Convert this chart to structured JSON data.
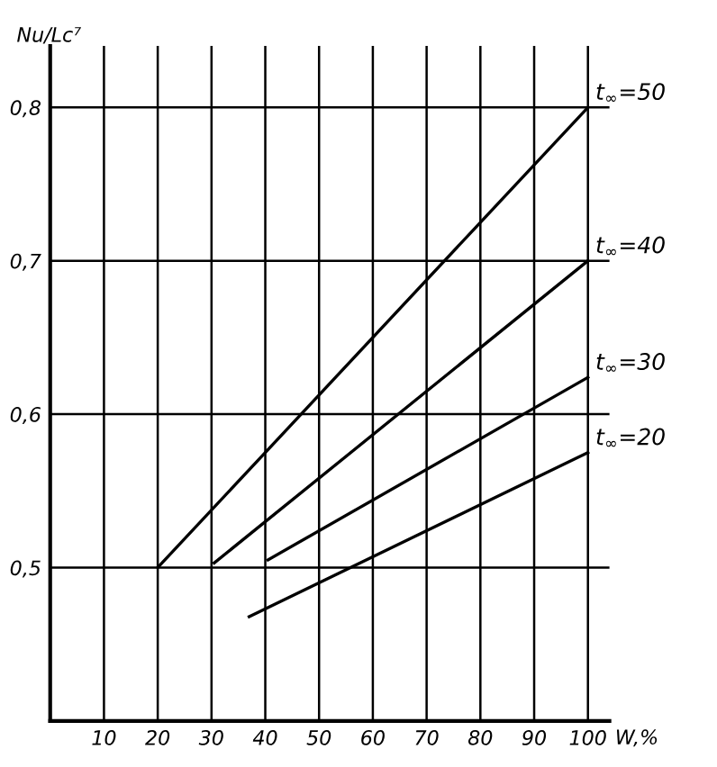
{
  "chart_data": {
    "type": "line",
    "ylabel": "Nu/Lc⁷",
    "xlabel": "W,%",
    "xlim": [
      0,
      104
    ],
    "ylim": [
      0.4,
      0.84
    ],
    "xticks": [
      10,
      20,
      30,
      40,
      50,
      60,
      70,
      80,
      90,
      100
    ],
    "yticks": [
      {
        "value": 0.4,
        "label": null
      },
      {
        "value": 0.5,
        "label": "0,5"
      },
      {
        "value": 0.6,
        "label": "0,6"
      },
      {
        "value": 0.7,
        "label": "0,7"
      },
      {
        "value": 0.8,
        "label": "0,8"
      }
    ],
    "grid": true,
    "marker": "none",
    "line_style": "solid",
    "legend": false,
    "series": [
      {
        "name": "t$_{∞}$=50",
        "color": "#000000",
        "x": [
          20,
          100
        ],
        "values": [
          0.5,
          0.8
        ]
      },
      {
        "name": "t$_{∞}$=40",
        "color": "#000000",
        "x": [
          30.5,
          100
        ],
        "values": [
          0.503,
          0.7
        ]
      },
      {
        "name": "t$_{∞}$=30",
        "color": "#000000",
        "x": [
          40.5,
          100
        ],
        "values": [
          0.505,
          0.624
        ]
      },
      {
        "name": "t$_{∞}$=20",
        "color": "#000000",
        "x": [
          37,
          100
        ],
        "values": [
          0.468,
          0.575
        ]
      }
    ]
  }
}
